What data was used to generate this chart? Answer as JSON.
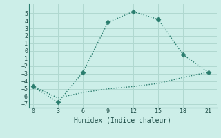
{
  "xlabel": "Humidex (Indice chaleur)",
  "line1_x": [
    0,
    3,
    6,
    9,
    12,
    15,
    18,
    21
  ],
  "line1_y": [
    -4.7,
    -6.8,
    -2.8,
    3.8,
    5.2,
    4.2,
    -0.5,
    -2.8
  ],
  "line2_x": [
    0,
    3,
    6,
    9,
    12,
    15,
    18,
    21
  ],
  "line2_y": [
    -4.7,
    -6.2,
    -5.5,
    -5.0,
    -4.7,
    -4.3,
    -3.5,
    -2.8
  ],
  "line_color": "#2a7d6e",
  "bg_color": "#cceee8",
  "grid_color": "#b0d8d0",
  "xlim": [
    -0.5,
    22
  ],
  "ylim": [
    -7.5,
    6.2
  ],
  "xticks": [
    0,
    3,
    6,
    9,
    12,
    15,
    18,
    21
  ],
  "yticks": [
    -7,
    -6,
    -5,
    -4,
    -3,
    -2,
    -1,
    0,
    1,
    2,
    3,
    4,
    5
  ],
  "markersize": 3.5,
  "linewidth": 1.0,
  "xlabel_fontsize": 7,
  "tick_fontsize": 6
}
